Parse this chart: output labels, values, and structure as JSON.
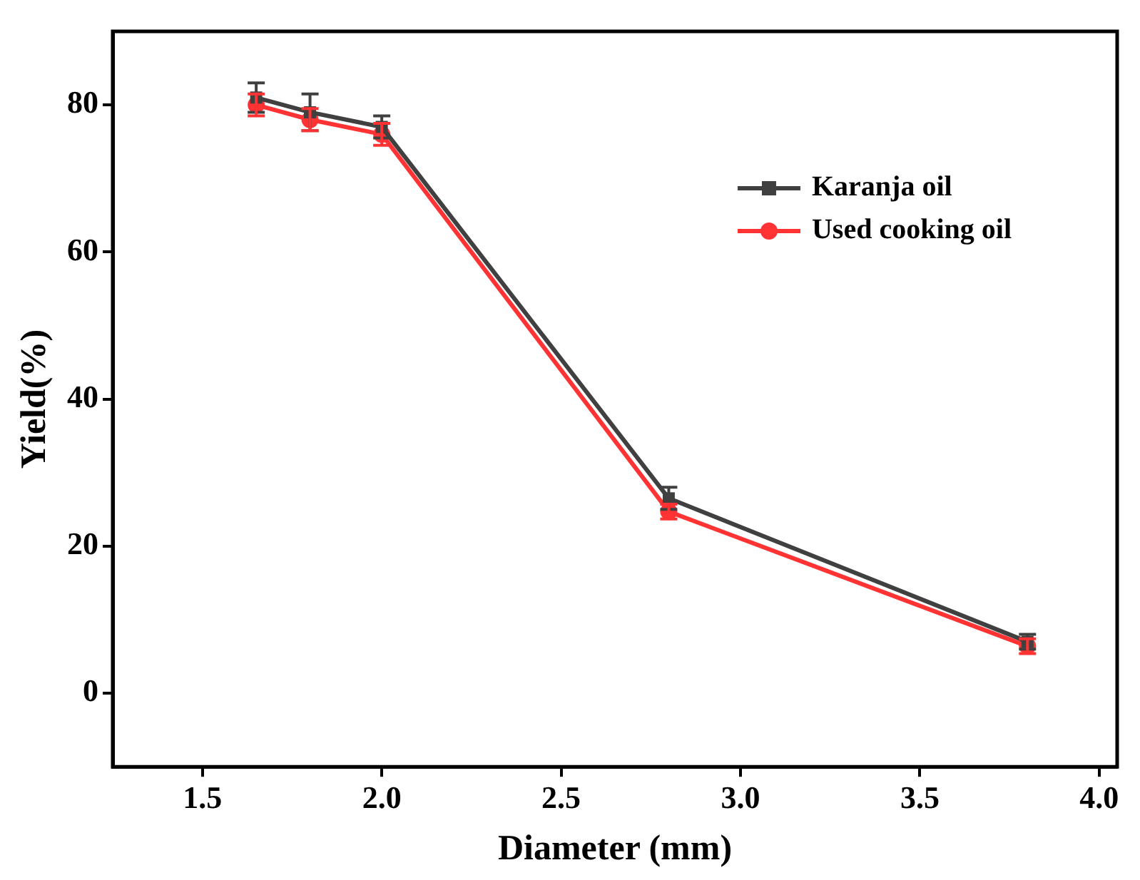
{
  "chart_data": {
    "type": "line",
    "xlabel": "Diameter (mm)",
    "ylabel": "Yield(%)",
    "x": [
      1.65,
      1.8,
      2.0,
      2.8,
      3.8
    ],
    "series": [
      {
        "name": "Karanja oil",
        "color": "#404040",
        "marker": "square",
        "values": [
          81,
          79,
          77,
          26.5,
          7
        ],
        "errors": [
          2,
          2.5,
          1.5,
          1.5,
          1
        ]
      },
      {
        "name": "Used cooking oil",
        "color": "#ff3333",
        "marker": "circle",
        "values": [
          80,
          78,
          76,
          24.7,
          6.4
        ],
        "errors": [
          1.5,
          1.5,
          1.5,
          1,
          1
        ]
      }
    ],
    "xlim": [
      1.25,
      4.05
    ],
    "xticks": [
      1.5,
      {
        "value": 2,
        "label": "2.0"
      },
      2.5,
      {
        "value": 3,
        "label": "3.0"
      },
      3.5,
      {
        "value": 4,
        "label": "4.0"
      }
    ],
    "ylim": [
      -10,
      90
    ],
    "yticks": [
      0,
      20,
      40,
      60,
      80
    ],
    "grid": false,
    "legend": "top right",
    "line_style": "solid"
  }
}
